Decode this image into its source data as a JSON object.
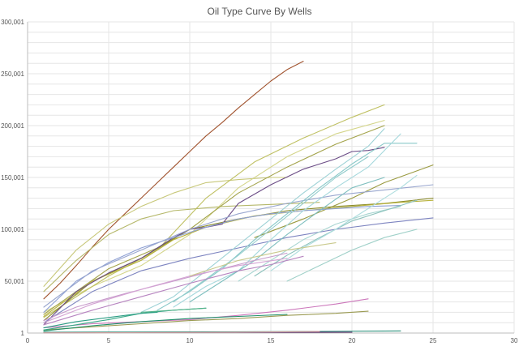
{
  "chart_data": {
    "type": "line",
    "title": "Oil Type Curve By Wells",
    "xlabel": "",
    "ylabel": "",
    "xlim": [
      0,
      30
    ],
    "ylim": [
      1,
      300001
    ],
    "xticks": [
      "0",
      "5",
      "10",
      "15",
      "20",
      "25",
      "30"
    ],
    "yticks": [
      "1",
      "50,001",
      "100,001",
      "150,001",
      "200,001",
      "250,001",
      "300,001"
    ],
    "grid": true,
    "legend": "none",
    "series": [
      {
        "color": "#a0522d",
        "points": [
          [
            1,
            33000
          ],
          [
            2,
            48000
          ],
          [
            3,
            65000
          ],
          [
            4,
            83000
          ],
          [
            5,
            100000
          ],
          [
            6,
            115000
          ],
          [
            7,
            130000
          ],
          [
            8,
            145000
          ],
          [
            9,
            160000
          ],
          [
            10,
            175000
          ],
          [
            11,
            190000
          ],
          [
            12,
            203000
          ],
          [
            13,
            217000
          ],
          [
            14,
            230000
          ],
          [
            15,
            243000
          ],
          [
            16,
            254000
          ],
          [
            17,
            262000
          ]
        ]
      },
      {
        "color": "#c8c87a",
        "points": [
          [
            1,
            45000
          ],
          [
            3,
            80000
          ],
          [
            5,
            105000
          ],
          [
            7,
            122000
          ],
          [
            9,
            135000
          ],
          [
            11,
            145000
          ],
          [
            13,
            148000
          ],
          [
            15,
            150000
          ],
          [
            16,
            150000
          ]
        ]
      },
      {
        "color": "#b5b86a",
        "points": [
          [
            1,
            40000
          ],
          [
            3,
            70000
          ],
          [
            5,
            95000
          ],
          [
            7,
            110000
          ],
          [
            9,
            118000
          ],
          [
            12,
            122000
          ],
          [
            15,
            124000
          ],
          [
            18,
            126000
          ]
        ]
      },
      {
        "color": "#d4d58a",
        "points": [
          [
            1,
            20000
          ],
          [
            4,
            45000
          ],
          [
            7,
            65000
          ],
          [
            10,
            95000
          ],
          [
            13,
            140000
          ],
          [
            16,
            170000
          ],
          [
            19,
            192000
          ],
          [
            22,
            205000
          ]
        ]
      },
      {
        "color": "#bfc062",
        "points": [
          [
            1,
            15000
          ],
          [
            5,
            55000
          ],
          [
            8,
            80000
          ],
          [
            11,
            130000
          ],
          [
            14,
            165000
          ],
          [
            17,
            188000
          ],
          [
            20,
            208000
          ],
          [
            22,
            220000
          ]
        ]
      },
      {
        "color": "#a3a34a",
        "points": [
          [
            1,
            18000
          ],
          [
            5,
            62000
          ],
          [
            8,
            82000
          ],
          [
            10,
            100000
          ],
          [
            13,
            135000
          ],
          [
            16,
            160000
          ],
          [
            19,
            182000
          ],
          [
            22,
            200000
          ]
        ]
      },
      {
        "color": "#8b8b2a",
        "points": [
          [
            1,
            12000
          ],
          [
            4,
            50000
          ],
          [
            7,
            72000
          ],
          [
            10,
            100000
          ],
          [
            13,
            110000
          ],
          [
            16,
            118000
          ],
          [
            19,
            122000
          ],
          [
            22,
            125000
          ],
          [
            25,
            130000
          ]
        ]
      },
      {
        "color": "#b8b23a",
        "points": [
          [
            1,
            16000
          ],
          [
            4,
            50000
          ],
          [
            7,
            70000
          ],
          [
            9,
            90000
          ],
          [
            11,
            102000
          ],
          [
            14,
            113000
          ],
          [
            17,
            118000
          ],
          [
            20,
            122000
          ],
          [
            23,
            126000
          ],
          [
            25,
            128000
          ]
        ]
      },
      {
        "color": "#9a9a40",
        "points": [
          [
            14,
            92000
          ],
          [
            17,
            110000
          ],
          [
            20,
            130000
          ],
          [
            22,
            145000
          ],
          [
            25,
            162000
          ]
        ]
      },
      {
        "color": "#6b4c86",
        "points": [
          [
            1,
            8000
          ],
          [
            3,
            40000
          ],
          [
            5,
            58000
          ],
          [
            7,
            72000
          ],
          [
            9,
            92000
          ],
          [
            10,
            100000
          ],
          [
            11,
            102000
          ],
          [
            12,
            105000
          ],
          [
            13,
            125000
          ],
          [
            15,
            143000
          ],
          [
            17,
            158000
          ],
          [
            19,
            168000
          ],
          [
            20,
            175000
          ],
          [
            21,
            176000
          ],
          [
            22,
            179000
          ]
        ]
      },
      {
        "color": "#8ea0d4",
        "points": [
          [
            1,
            20000
          ],
          [
            3,
            50000
          ],
          [
            5,
            68000
          ],
          [
            7,
            82000
          ],
          [
            9,
            92000
          ],
          [
            11,
            102000
          ],
          [
            13,
            110000
          ],
          [
            15,
            115000
          ],
          [
            17,
            118000
          ],
          [
            19,
            120000
          ],
          [
            21,
            122000
          ],
          [
            23,
            123000
          ]
        ]
      },
      {
        "color": "#9aa7cf",
        "points": [
          [
            1,
            25000
          ],
          [
            4,
            60000
          ],
          [
            7,
            80000
          ],
          [
            10,
            100000
          ],
          [
            13,
            115000
          ],
          [
            16,
            125000
          ],
          [
            19,
            133000
          ],
          [
            22,
            138000
          ],
          [
            25,
            143000
          ]
        ]
      },
      {
        "color": "#7d84c0",
        "points": [
          [
            1,
            10000
          ],
          [
            4,
            40000
          ],
          [
            7,
            60000
          ],
          [
            10,
            72000
          ],
          [
            13,
            82000
          ],
          [
            16,
            92000
          ],
          [
            19,
            100000
          ],
          [
            22,
            106000
          ],
          [
            25,
            111000
          ]
        ]
      },
      {
        "color": "#9ed2d6",
        "points": [
          [
            7,
            20000
          ],
          [
            9,
            35000
          ],
          [
            11,
            60000
          ],
          [
            13,
            85000
          ],
          [
            15,
            110000
          ],
          [
            17,
            135000
          ],
          [
            19,
            158000
          ],
          [
            21,
            180000
          ],
          [
            22,
            197000
          ]
        ]
      },
      {
        "color": "#88c8c8",
        "points": [
          [
            8,
            22000
          ],
          [
            10,
            40000
          ],
          [
            12,
            62000
          ],
          [
            14,
            90000
          ],
          [
            16,
            115000
          ],
          [
            18,
            140000
          ],
          [
            20,
            163000
          ],
          [
            22,
            183000
          ],
          [
            24,
            183000
          ]
        ]
      },
      {
        "color": "#a5d8dc",
        "points": [
          [
            9,
            25000
          ],
          [
            11,
            45000
          ],
          [
            13,
            60000
          ],
          [
            15,
            90000
          ],
          [
            17,
            118000
          ],
          [
            19,
            140000
          ],
          [
            21,
            160000
          ],
          [
            23,
            192000
          ]
        ]
      },
      {
        "color": "#7fbfbf",
        "points": [
          [
            10,
            30000
          ],
          [
            12,
            50000
          ],
          [
            14,
            70000
          ],
          [
            16,
            95000
          ],
          [
            18,
            118000
          ],
          [
            20,
            140000
          ],
          [
            22,
            150000
          ]
        ]
      },
      {
        "color": "#92cccc",
        "points": [
          [
            9,
            30000
          ],
          [
            11,
            52000
          ],
          [
            13,
            75000
          ],
          [
            15,
            100000
          ],
          [
            17,
            125000
          ],
          [
            19,
            150000
          ],
          [
            21,
            170000
          ]
        ]
      },
      {
        "color": "#a9d6d2",
        "points": [
          [
            13,
            50000
          ],
          [
            15,
            70000
          ],
          [
            17,
            90000
          ],
          [
            19,
            105000
          ],
          [
            21,
            115000
          ],
          [
            23,
            122000
          ]
        ]
      },
      {
        "color": "#8ec3bd",
        "points": [
          [
            14,
            55000
          ],
          [
            16,
            75000
          ],
          [
            18,
            92000
          ],
          [
            20,
            108000
          ],
          [
            22,
            118000
          ],
          [
            24,
            128000
          ]
        ]
      },
      {
        "color": "#aeddde",
        "points": [
          [
            15,
            60000
          ],
          [
            17,
            82000
          ],
          [
            19,
            100000
          ],
          [
            21,
            120000
          ],
          [
            23,
            140000
          ],
          [
            24,
            152000
          ]
        ]
      },
      {
        "color": "#9fd0c8",
        "points": [
          [
            16,
            50000
          ],
          [
            18,
            65000
          ],
          [
            20,
            80000
          ],
          [
            22,
            92000
          ],
          [
            24,
            100000
          ]
        ]
      },
      {
        "color": "#c79acb",
        "points": [
          [
            1,
            12000
          ],
          [
            3,
            25000
          ],
          [
            6,
            38000
          ],
          [
            9,
            50000
          ],
          [
            12,
            62000
          ],
          [
            14,
            70000
          ],
          [
            16,
            77000
          ]
        ]
      },
      {
        "color": "#b784c0",
        "points": [
          [
            1,
            8000
          ],
          [
            4,
            22000
          ],
          [
            7,
            35000
          ],
          [
            10,
            48000
          ],
          [
            13,
            60000
          ],
          [
            15,
            66000
          ],
          [
            17,
            74000
          ]
        ]
      },
      {
        "color": "#d4a4d4",
        "points": [
          [
            1,
            10000
          ],
          [
            4,
            28000
          ],
          [
            7,
            42000
          ],
          [
            10,
            55000
          ],
          [
            13,
            65000
          ],
          [
            16,
            72000
          ]
        ]
      },
      {
        "color": "#cc77bb",
        "points": [
          [
            1,
            5000
          ],
          [
            4,
            9000
          ],
          [
            7,
            11000
          ],
          [
            10,
            13000
          ],
          [
            13,
            17000
          ],
          [
            16,
            22000
          ],
          [
            19,
            28000
          ],
          [
            21,
            33000
          ]
        ]
      },
      {
        "color": "#9a9a52",
        "points": [
          [
            1,
            3000
          ],
          [
            4,
            6000
          ],
          [
            7,
            9000
          ],
          [
            10,
            12000
          ],
          [
            13,
            14000
          ],
          [
            16,
            17000
          ],
          [
            19,
            19000
          ],
          [
            21,
            21000
          ]
        ]
      },
      {
        "color": "#c9c98c",
        "points": [
          [
            10,
            55000
          ],
          [
            13,
            70000
          ],
          [
            16,
            80000
          ],
          [
            19,
            87000
          ]
        ]
      },
      {
        "color": "#3aaa88",
        "points": [
          [
            1,
            3000
          ],
          [
            3,
            8000
          ],
          [
            5,
            13000
          ],
          [
            7,
            19000
          ],
          [
            8,
            20000
          ]
        ]
      },
      {
        "color": "#2e9e86",
        "points": [
          [
            1,
            5000
          ],
          [
            3,
            11000
          ],
          [
            5,
            15000
          ],
          [
            7,
            19000
          ],
          [
            9,
            22000
          ],
          [
            11,
            24000
          ]
        ]
      },
      {
        "color": "#1f8f6a",
        "points": [
          [
            1,
            2000
          ],
          [
            4,
            7000
          ],
          [
            7,
            11000
          ],
          [
            10,
            14000
          ],
          [
            13,
            16000
          ],
          [
            16,
            18000
          ]
        ]
      },
      {
        "color": "#55b48a",
        "points": [
          [
            7,
            20000
          ],
          [
            8,
            21000
          ],
          [
            9,
            22000
          ],
          [
            10,
            23000
          ],
          [
            11,
            24000
          ]
        ]
      },
      {
        "color": "#7a3a8a",
        "points": [
          [
            1,
            500
          ],
          [
            5,
            700
          ],
          [
            10,
            800
          ],
          [
            15,
            900
          ],
          [
            18,
            1000
          ]
        ]
      },
      {
        "color": "#5a2a6a",
        "points": [
          [
            1,
            300
          ],
          [
            5,
            500
          ],
          [
            10,
            600
          ],
          [
            15,
            700
          ],
          [
            20,
            800
          ]
        ]
      },
      {
        "color": "#2b8f7a",
        "points": [
          [
            1,
            800
          ],
          [
            6,
            900
          ],
          [
            12,
            1200
          ],
          [
            18,
            1600
          ],
          [
            23,
            2000
          ]
        ]
      },
      {
        "color": "#d4a0a0",
        "points": [
          [
            1,
            200
          ],
          [
            6,
            400
          ],
          [
            12,
            700
          ],
          [
            18,
            1500
          ]
        ]
      }
    ]
  }
}
